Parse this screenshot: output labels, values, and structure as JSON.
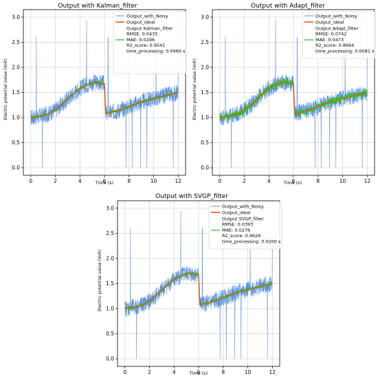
{
  "figure": {
    "colors": {
      "noisy": "#5a8fe0",
      "ideal": "#e0521e",
      "filtered": "#2ec42e",
      "grid": "#d2d2d2",
      "axis": "#000000"
    }
  },
  "chart_data": [
    {
      "type": "line",
      "title": "Output with Kalman_filter",
      "xlabel": "Time (s)",
      "ylabel": "Electric potential value (Volt)",
      "xlim": [
        -0.6,
        12.6
      ],
      "ylim": [
        -0.15,
        3.15
      ],
      "xticks": [
        0,
        2,
        4,
        6,
        8,
        10,
        12
      ],
      "yticks": [
        0.0,
        0.5,
        1.0,
        1.5,
        2.0,
        2.5,
        3.0
      ],
      "grid": true,
      "legend_position": "top-right",
      "legend": {
        "noisy": "Output_with_Noisy",
        "ideal": "Output_ideal",
        "filtered_lines": [
          "Output Kalman_filter",
          "RMSE: 0.0435",
          "MAE: 0.0296",
          "R2_score: 0.9541",
          "time_processing: 0.0960 s"
        ]
      },
      "series": [
        {
          "name": "Output_with_Noisy",
          "x": [
            0,
            0.5,
            1,
            1.5,
            2,
            2.5,
            3,
            3.5,
            4,
            4.5,
            5,
            5.5,
            6,
            6.1,
            6.5,
            7,
            7.5,
            8,
            8.5,
            9,
            9.5,
            10,
            10.5,
            11,
            11.5,
            12
          ],
          "y": [
            1.0,
            1.02,
            1.04,
            1.08,
            1.15,
            1.25,
            1.37,
            1.48,
            1.58,
            1.65,
            1.69,
            1.7,
            1.67,
            1.08,
            1.1,
            1.13,
            1.17,
            1.22,
            1.27,
            1.31,
            1.35,
            1.38,
            1.41,
            1.44,
            1.47,
            1.5
          ]
        },
        {
          "name": "Output_ideal",
          "x": [
            0,
            0.5,
            1,
            1.5,
            2,
            2.5,
            3,
            3.5,
            4,
            4.5,
            5,
            5.5,
            6,
            6.1,
            6.5,
            7,
            7.5,
            8,
            8.5,
            9,
            9.5,
            10,
            10.5,
            11,
            11.5,
            12
          ],
          "y": [
            1.0,
            1.02,
            1.04,
            1.08,
            1.15,
            1.25,
            1.37,
            1.48,
            1.58,
            1.65,
            1.69,
            1.7,
            1.67,
            1.08,
            1.1,
            1.13,
            1.17,
            1.22,
            1.27,
            1.31,
            1.35,
            1.38,
            1.41,
            1.44,
            1.47,
            1.5
          ]
        },
        {
          "name": "Output Kalman_filter",
          "x": [
            0,
            0.5,
            1,
            1.5,
            2,
            2.5,
            3,
            3.5,
            4,
            4.5,
            5,
            5.5,
            6,
            6.1,
            6.5,
            7,
            7.5,
            8,
            8.5,
            9,
            9.5,
            10,
            10.5,
            11,
            11.5,
            12
          ],
          "y": [
            1.0,
            1.02,
            1.04,
            1.08,
            1.15,
            1.25,
            1.37,
            1.48,
            1.58,
            1.65,
            1.69,
            1.7,
            1.67,
            1.08,
            1.1,
            1.13,
            1.17,
            1.22,
            1.27,
            1.31,
            1.35,
            1.38,
            1.41,
            1.44,
            1.47,
            1.5
          ]
        }
      ]
    },
    {
      "type": "line",
      "title": "Output with Adapt_filter",
      "xlabel": "Time (s)",
      "ylabel": "Electric potential value (Volt)",
      "xlim": [
        -0.6,
        12.6
      ],
      "ylim": [
        -0.15,
        3.15
      ],
      "xticks": [
        0,
        2,
        4,
        6,
        8,
        10,
        12
      ],
      "yticks": [
        0.0,
        0.5,
        1.0,
        1.5,
        2.0,
        2.5,
        3.0
      ],
      "grid": true,
      "legend_position": "top-right",
      "legend": {
        "noisy": "Output_with_Noisy",
        "ideal": "Output_ideal",
        "filtered_lines": [
          "Output Adapt_filter",
          "RMSE: 0.0742",
          "MAE: 0.0473",
          "R2_score: 0.8664",
          "time_processing: 0.0081 s"
        ]
      },
      "series": [
        {
          "name": "Output_with_Noisy",
          "x": [
            0,
            0.5,
            1,
            1.5,
            2,
            2.5,
            3,
            3.5,
            4,
            4.5,
            5,
            5.5,
            6,
            6.1,
            6.5,
            7,
            7.5,
            8,
            8.5,
            9,
            9.5,
            10,
            10.5,
            11,
            11.5,
            12
          ],
          "y": [
            1.0,
            1.02,
            1.04,
            1.08,
            1.15,
            1.25,
            1.37,
            1.48,
            1.58,
            1.65,
            1.69,
            1.7,
            1.67,
            1.08,
            1.1,
            1.13,
            1.17,
            1.22,
            1.27,
            1.31,
            1.35,
            1.38,
            1.41,
            1.44,
            1.47,
            1.5
          ]
        },
        {
          "name": "Output_ideal",
          "x": [
            0,
            0.5,
            1,
            1.5,
            2,
            2.5,
            3,
            3.5,
            4,
            4.5,
            5,
            5.5,
            6,
            6.1,
            6.5,
            7,
            7.5,
            8,
            8.5,
            9,
            9.5,
            10,
            10.5,
            11,
            11.5,
            12
          ],
          "y": [
            1.0,
            1.02,
            1.04,
            1.08,
            1.15,
            1.25,
            1.37,
            1.48,
            1.58,
            1.65,
            1.69,
            1.7,
            1.67,
            1.08,
            1.1,
            1.13,
            1.17,
            1.22,
            1.27,
            1.31,
            1.35,
            1.38,
            1.41,
            1.44,
            1.47,
            1.5
          ]
        },
        {
          "name": "Output Adapt_filter",
          "x": [
            0,
            0.5,
            1,
            1.5,
            2,
            2.5,
            3,
            3.5,
            4,
            4.5,
            5,
            5.5,
            6,
            6.1,
            6.5,
            7,
            7.5,
            8,
            8.5,
            9,
            9.5,
            10,
            10.5,
            11,
            11.5,
            12
          ],
          "y": [
            1.0,
            1.02,
            1.04,
            1.08,
            1.15,
            1.25,
            1.37,
            1.48,
            1.58,
            1.65,
            1.69,
            1.7,
            1.67,
            1.08,
            1.1,
            1.13,
            1.17,
            1.22,
            1.27,
            1.31,
            1.35,
            1.38,
            1.41,
            1.44,
            1.47,
            1.5
          ]
        }
      ]
    },
    {
      "type": "line",
      "title": "Output with SVGP_filter",
      "xlabel": "Time (s)",
      "ylabel": "Electric potential value (Volt)",
      "xlim": [
        -0.6,
        12.6
      ],
      "ylim": [
        -0.15,
        3.15
      ],
      "xticks": [
        0,
        2,
        4,
        6,
        8,
        10,
        12
      ],
      "yticks": [
        0.0,
        0.5,
        1.0,
        1.5,
        2.0,
        2.5,
        3.0
      ],
      "grid": true,
      "legend_position": "top-right",
      "legend": {
        "noisy": "Output_with_Noisy",
        "ideal": "Output_ideal",
        "filtered_lines": [
          "Output SVGP_filter",
          "RMSE: 0.0393",
          "MAE: 0.0276",
          "R2_score: 0.9626",
          "time_processing: 0.0200 s"
        ]
      },
      "series": [
        {
          "name": "Output_with_Noisy",
          "x": [
            0,
            0.5,
            1,
            1.5,
            2,
            2.5,
            3,
            3.5,
            4,
            4.5,
            5,
            5.5,
            6,
            6.1,
            6.5,
            7,
            7.5,
            8,
            8.5,
            9,
            9.5,
            10,
            10.5,
            11,
            11.5,
            12
          ],
          "y": [
            1.0,
            1.02,
            1.04,
            1.08,
            1.15,
            1.25,
            1.37,
            1.48,
            1.58,
            1.65,
            1.69,
            1.7,
            1.67,
            1.08,
            1.1,
            1.13,
            1.17,
            1.22,
            1.27,
            1.31,
            1.35,
            1.38,
            1.41,
            1.44,
            1.47,
            1.5
          ]
        },
        {
          "name": "Output_ideal",
          "x": [
            0,
            0.5,
            1,
            1.5,
            2,
            2.5,
            3,
            3.5,
            4,
            4.5,
            5,
            5.5,
            6,
            6.1,
            6.5,
            7,
            7.5,
            8,
            8.5,
            9,
            9.5,
            10,
            10.5,
            11,
            11.5,
            12
          ],
          "y": [
            1.0,
            1.02,
            1.04,
            1.08,
            1.15,
            1.25,
            1.37,
            1.48,
            1.58,
            1.65,
            1.69,
            1.7,
            1.67,
            1.08,
            1.1,
            1.13,
            1.17,
            1.22,
            1.27,
            1.31,
            1.35,
            1.38,
            1.41,
            1.44,
            1.47,
            1.5
          ]
        },
        {
          "name": "Output SVGP_filter",
          "x": [
            0,
            0.5,
            1,
            1.5,
            2,
            2.5,
            3,
            3.5,
            4,
            4.5,
            5,
            5.5,
            6,
            6.1,
            6.5,
            7,
            7.5,
            8,
            8.5,
            9,
            9.5,
            10,
            10.5,
            11,
            11.5,
            12
          ],
          "y": [
            1.0,
            1.02,
            1.04,
            1.08,
            1.15,
            1.25,
            1.37,
            1.48,
            1.58,
            1.65,
            1.69,
            1.7,
            1.67,
            1.08,
            1.1,
            1.13,
            1.17,
            1.22,
            1.27,
            1.31,
            1.35,
            1.38,
            1.41,
            1.44,
            1.47,
            1.5
          ]
        }
      ]
    }
  ]
}
